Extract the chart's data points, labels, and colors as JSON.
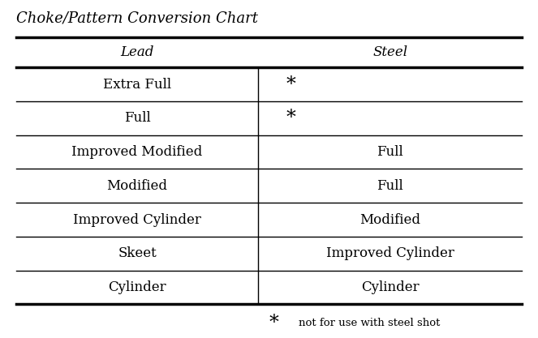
{
  "title": "Choke/Pattern Conversion Chart",
  "col_header_lead": "Lead",
  "col_header_steel": "Steel",
  "rows": [
    [
      "Extra Full",
      "*"
    ],
    [
      "Full",
      "*"
    ],
    [
      "Improved Modified",
      "Full"
    ],
    [
      "Modified",
      "Full"
    ],
    [
      "Improved Cylinder",
      "Modified"
    ],
    [
      "Skeet",
      "Improved Cylinder"
    ],
    [
      "Cylinder",
      "Cylinder"
    ]
  ],
  "footnote_star": "*",
  "footnote_text": "not for use with steel shot",
  "bg_color": "#ffffff",
  "text_color": "#000000",
  "line_color": "#000000",
  "col_split": 0.48,
  "title_fontsize": 13,
  "header_fontsize": 12,
  "cell_fontsize": 12,
  "footnote_fontsize": 9.5
}
